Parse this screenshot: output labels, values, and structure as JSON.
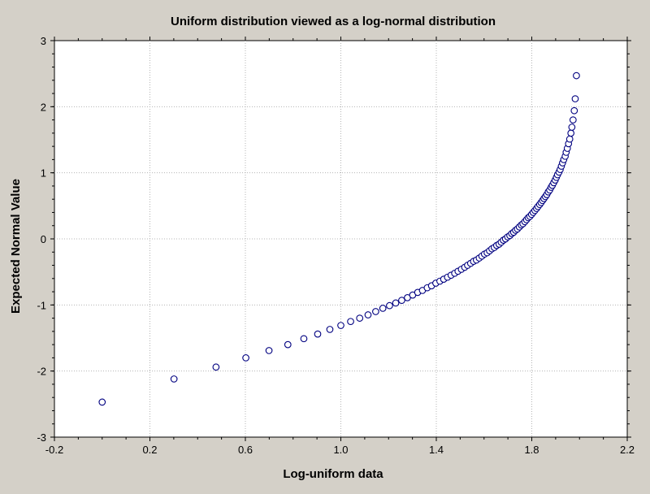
{
  "chart_data": {
    "type": "scatter",
    "title": "Uniform distribution viewed as a log-normal distribution",
    "xlabel": "Log-uniform data",
    "ylabel": "Expected Normal Value",
    "xlim": [
      -0.2,
      2.2
    ],
    "ylim": [
      -3,
      3
    ],
    "xticks": [
      -0.2,
      0.2,
      0.6,
      1.0,
      1.4,
      1.8,
      2.2
    ],
    "xtick_labels": [
      "-0.2",
      "0.2",
      "0.6",
      "1.0",
      "1.4",
      "1.8",
      "2.2"
    ],
    "yticks": [
      -3,
      -2,
      -1,
      0,
      1,
      2,
      3
    ],
    "ytick_labels": [
      "-3",
      "-2",
      "-1",
      "0",
      "1",
      "2",
      "3"
    ],
    "grid": true,
    "marker": "open-circle",
    "colors": {
      "marker": "#000080",
      "plot_background": "#ffffff",
      "frame_background": "#d4d0c8",
      "grid": "#b4b4b4"
    },
    "series": [
      {
        "values": [
          [
            0.0,
            -2.47
          ],
          [
            0.301,
            -2.12
          ],
          [
            0.477,
            -1.94
          ],
          [
            0.602,
            -1.8
          ],
          [
            0.699,
            -1.69
          ],
          [
            0.778,
            -1.6
          ],
          [
            0.845,
            -1.51
          ],
          [
            0.903,
            -1.44
          ],
          [
            0.954,
            -1.37
          ],
          [
            1.0,
            -1.31
          ],
          [
            1.041,
            -1.25
          ],
          [
            1.079,
            -1.2
          ],
          [
            1.114,
            -1.15
          ],
          [
            1.146,
            -1.1
          ],
          [
            1.176,
            -1.05
          ],
          [
            1.204,
            -1.01
          ],
          [
            1.23,
            -0.97
          ],
          [
            1.255,
            -0.93
          ],
          [
            1.279,
            -0.89
          ],
          [
            1.301,
            -0.85
          ],
          [
            1.322,
            -0.81
          ],
          [
            1.342,
            -0.78
          ],
          [
            1.362,
            -0.74
          ],
          [
            1.38,
            -0.71
          ],
          [
            1.398,
            -0.67
          ],
          [
            1.415,
            -0.64
          ],
          [
            1.431,
            -0.61
          ],
          [
            1.447,
            -0.58
          ],
          [
            1.462,
            -0.55
          ],
          [
            1.477,
            -0.52
          ],
          [
            1.491,
            -0.49
          ],
          [
            1.505,
            -0.46
          ],
          [
            1.519,
            -0.43
          ],
          [
            1.531,
            -0.4
          ],
          [
            1.544,
            -0.37
          ],
          [
            1.556,
            -0.34
          ],
          [
            1.568,
            -0.32
          ],
          [
            1.58,
            -0.29
          ],
          [
            1.591,
            -0.26
          ],
          [
            1.602,
            -0.23
          ],
          [
            1.613,
            -0.21
          ],
          [
            1.623,
            -0.18
          ],
          [
            1.633,
            -0.15
          ],
          [
            1.643,
            -0.13
          ],
          [
            1.653,
            -0.1
          ],
          [
            1.663,
            -0.08
          ],
          [
            1.672,
            -0.05
          ],
          [
            1.681,
            -0.02
          ],
          [
            1.69,
            0.0
          ],
          [
            1.699,
            0.03
          ],
          [
            1.708,
            0.05
          ],
          [
            1.716,
            0.08
          ],
          [
            1.724,
            0.1
          ],
          [
            1.732,
            0.13
          ],
          [
            1.74,
            0.15
          ],
          [
            1.748,
            0.18
          ],
          [
            1.756,
            0.21
          ],
          [
            1.763,
            0.23
          ],
          [
            1.771,
            0.26
          ],
          [
            1.778,
            0.29
          ],
          [
            1.785,
            0.32
          ],
          [
            1.792,
            0.34
          ],
          [
            1.799,
            0.37
          ],
          [
            1.806,
            0.4
          ],
          [
            1.813,
            0.43
          ],
          [
            1.82,
            0.46
          ],
          [
            1.826,
            0.49
          ],
          [
            1.833,
            0.52
          ],
          [
            1.839,
            0.55
          ],
          [
            1.845,
            0.58
          ],
          [
            1.851,
            0.61
          ],
          [
            1.857,
            0.64
          ],
          [
            1.863,
            0.67
          ],
          [
            1.869,
            0.71
          ],
          [
            1.875,
            0.74
          ],
          [
            1.881,
            0.78
          ],
          [
            1.886,
            0.81
          ],
          [
            1.892,
            0.85
          ],
          [
            1.898,
            0.89
          ],
          [
            1.903,
            0.93
          ],
          [
            1.908,
            0.97
          ],
          [
            1.914,
            1.01
          ],
          [
            1.919,
            1.05
          ],
          [
            1.924,
            1.1
          ],
          [
            1.929,
            1.15
          ],
          [
            1.934,
            1.2
          ],
          [
            1.94,
            1.25
          ],
          [
            1.944,
            1.31
          ],
          [
            1.949,
            1.37
          ],
          [
            1.954,
            1.44
          ],
          [
            1.959,
            1.51
          ],
          [
            1.964,
            1.6
          ],
          [
            1.968,
            1.69
          ],
          [
            1.973,
            1.8
          ],
          [
            1.978,
            1.94
          ],
          [
            1.982,
            2.12
          ],
          [
            1.987,
            2.47
          ]
        ]
      }
    ]
  }
}
